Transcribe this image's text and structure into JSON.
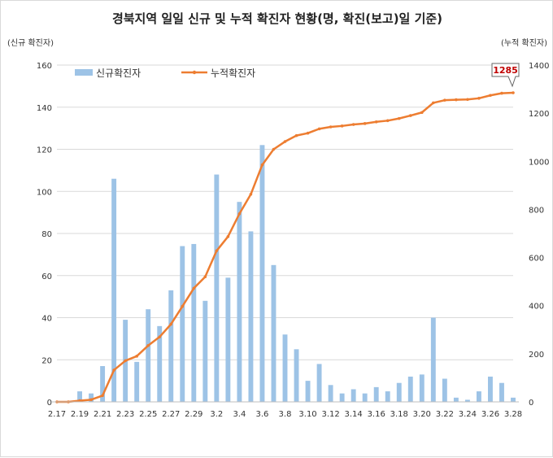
{
  "chart_data": {
    "type": "bar",
    "title": "경북지역 일일 신규 및 누적 확진자 현황(명, 확진(보고)일 기준)",
    "ylabel_left": "(신규 확진자)",
    "ylabel_right": "(누적 확진자)",
    "ylim_left": [
      0,
      160
    ],
    "ylim_right": [
      0,
      1400
    ],
    "yticks_left": [
      0,
      20,
      40,
      60,
      80,
      100,
      120,
      140,
      160
    ],
    "yticks_right": [
      0,
      200,
      400,
      600,
      800,
      1000,
      1200,
      1400
    ],
    "x_tick_labels": [
      "2.17",
      "2.19",
      "2.21",
      "2.23",
      "2.25",
      "2.27",
      "2.29",
      "3.2",
      "3.4",
      "3.6",
      "3.8",
      "3.10",
      "3.12",
      "3.14",
      "3.16",
      "3.18",
      "3.20",
      "3.22",
      "3.24",
      "3.26",
      "3.28"
    ],
    "categories": [
      "2.17",
      "2.18",
      "2.19",
      "2.20",
      "2.21",
      "2.22",
      "2.23",
      "2.24",
      "2.25",
      "2.26",
      "2.27",
      "2.28",
      "2.29",
      "3.1",
      "3.2",
      "3.3",
      "3.4",
      "3.5",
      "3.6",
      "3.7",
      "3.8",
      "3.9",
      "3.10",
      "3.11",
      "3.12",
      "3.13",
      "3.14",
      "3.15",
      "3.16",
      "3.17",
      "3.18",
      "3.19",
      "3.20",
      "3.21",
      "3.22",
      "3.23",
      "3.24",
      "3.25",
      "3.26",
      "3.27",
      "3.28"
    ],
    "legend": {
      "placement": "top-left"
    },
    "grid": true,
    "series": [
      {
        "name": "신규확진자",
        "type": "bar",
        "axis": "left",
        "color": "#9dc3e6",
        "values": [
          0,
          0,
          5,
          4,
          17,
          106,
          39,
          19,
          44,
          36,
          53,
          74,
          75,
          48,
          108,
          59,
          95,
          81,
          122,
          65,
          32,
          25,
          10,
          18,
          8,
          4,
          6,
          4,
          7,
          5,
          9,
          12,
          13,
          40,
          11,
          2,
          1,
          5,
          12,
          9,
          2
        ]
      },
      {
        "name": "누적확진자",
        "type": "line",
        "axis": "right",
        "color": "#ed7d31",
        "values": [
          0,
          0,
          5,
          9,
          26,
          132,
          171,
          190,
          234,
          270,
          323,
          397,
          472,
          520,
          628,
          687,
          782,
          863,
          985,
          1050,
          1082,
          1107,
          1117,
          1135,
          1143,
          1147,
          1153,
          1157,
          1164,
          1169,
          1178,
          1190,
          1203,
          1243,
          1254,
          1256,
          1257,
          1262,
          1274,
          1283,
          1285
        ]
      }
    ],
    "annotation": {
      "label": "1285",
      "category": "3.28"
    }
  }
}
